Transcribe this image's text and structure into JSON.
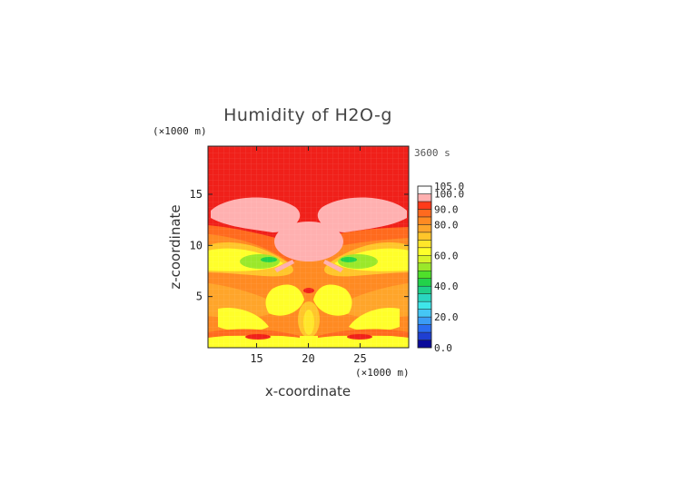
{
  "chart_data": {
    "type": "heatmap",
    "title": "Humidity of H2O-g",
    "xlabel": "x-coordinate",
    "ylabel": "z-coordinate",
    "x_unit": "(×1000 m)",
    "y_unit": "(×1000 m)",
    "time_label": "3600 s",
    "xlim": [
      10.3,
      29.7
    ],
    "ylim": [
      0,
      19.7
    ],
    "x_ticks": [
      {
        "value": 15,
        "label": "15"
      },
      {
        "value": 20,
        "label": "20"
      },
      {
        "value": 25,
        "label": "25"
      }
    ],
    "y_ticks": [
      {
        "value": 5,
        "label": "5"
      },
      {
        "value": 10,
        "label": "10"
      },
      {
        "value": 15,
        "label": "15"
      }
    ],
    "colorbar": {
      "levels": [
        0,
        5,
        10,
        15,
        20,
        25,
        30,
        35,
        40,
        45,
        50,
        55,
        60,
        65,
        70,
        75,
        80,
        85,
        90,
        95,
        100,
        105
      ],
      "colors": [
        "#0a0a9a",
        "#1f3fd2",
        "#2a6cf0",
        "#3b9cf5",
        "#45c6f5",
        "#3ee6ea",
        "#2ad6c0",
        "#1fcf8a",
        "#22d24a",
        "#4fe02a",
        "#9ae82a",
        "#d8f32a",
        "#ffff2a",
        "#ffe62a",
        "#ffc52a",
        "#ffa52a",
        "#ff8a22",
        "#ff6a1e",
        "#ff3a1a",
        "#ffb0b0",
        "#ffffff"
      ],
      "labels": [
        {
          "value": 0,
          "label": "0.0"
        },
        {
          "value": 20,
          "label": "20.0"
        },
        {
          "value": 40,
          "label": "40.0"
        },
        {
          "value": 60,
          "label": "60.0"
        },
        {
          "value": 80,
          "label": "80.0"
        },
        {
          "value": 90,
          "label": "90.0"
        },
        {
          "value": 100,
          "label": "100.0"
        },
        {
          "value": 105,
          "label": "105.0"
        }
      ]
    }
  }
}
